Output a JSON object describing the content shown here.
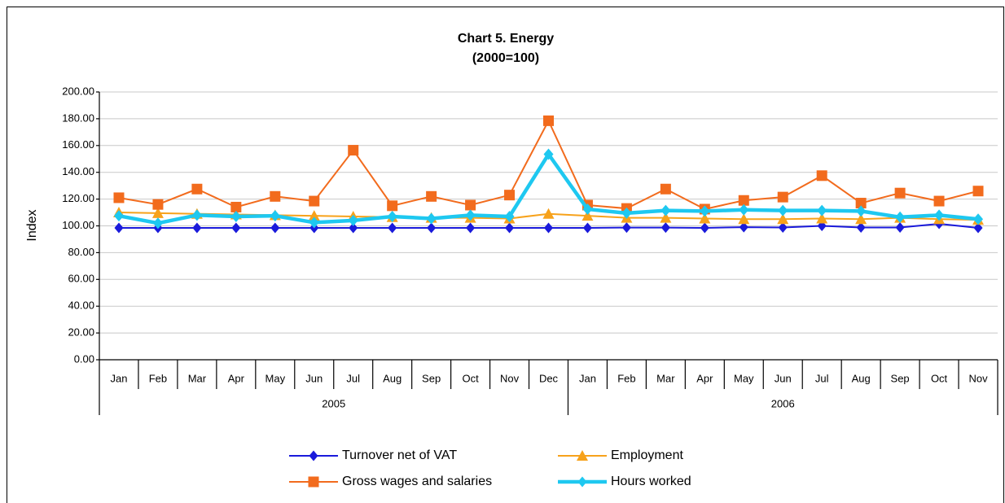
{
  "chart_data": {
    "type": "line",
    "title": "Chart 5.  Energy",
    "subtitle": "(2000=100)",
    "y_label": "Index",
    "groups": [
      {
        "name": "2005",
        "categories": [
          "Jan",
          "Feb",
          "Mar",
          "Apr",
          "May",
          "Jun",
          "Jul",
          "Aug",
          "Sep",
          "Oct",
          "Nov",
          "Dec"
        ]
      },
      {
        "name": "2006",
        "categories": [
          "Jan",
          "Feb",
          "Mar",
          "Apr",
          "May",
          "Jun",
          "Jul",
          "Aug",
          "Sep",
          "Oct",
          "Nov"
        ]
      }
    ],
    "ylim": [
      0,
      200
    ],
    "yticks": [
      {
        "value": 0,
        "label": "0.00"
      },
      {
        "value": 20,
        "label": "20.00"
      },
      {
        "value": 40,
        "label": "40.00"
      },
      {
        "value": 60,
        "label": "60.00"
      },
      {
        "value": 80,
        "label": "80.00"
      },
      {
        "value": 100,
        "label": "100.00"
      },
      {
        "value": 120,
        "label": "120.00"
      },
      {
        "value": 140,
        "label": "140.00"
      },
      {
        "value": 160,
        "label": "160.00"
      },
      {
        "value": 180,
        "label": "180.00"
      },
      {
        "value": 200,
        "label": "200.00"
      }
    ],
    "grid": true,
    "legend": "bottom",
    "series": [
      {
        "name": "Turnover net of VAT",
        "color": "#1a1adb",
        "marker": "diamond",
        "values": [
          98.5,
          98.5,
          98.5,
          98.5,
          98.5,
          98.5,
          98.5,
          98.5,
          98.5,
          98.5,
          98.5,
          98.5,
          98.5,
          98.7,
          98.7,
          98.5,
          99,
          98.8,
          100,
          98.8,
          98.8,
          101.5,
          98.5
        ]
      },
      {
        "name": "Employment",
        "color": "#f7a21b",
        "marker": "triangle",
        "values": [
          110,
          109.5,
          109,
          108.5,
          108,
          107.5,
          107,
          106.5,
          106,
          106,
          105.5,
          109,
          107.5,
          106,
          106,
          105.5,
          105,
          105,
          105.5,
          105,
          106,
          105,
          104.5
        ]
      },
      {
        "name": "Gross wages and salaries",
        "color": "#f26b1d",
        "marker": "square",
        "values": [
          121,
          116,
          127.5,
          114,
          122,
          118.5,
          156.5,
          115,
          122,
          115.5,
          123,
          178.5,
          115.5,
          113,
          127.5,
          112.5,
          119,
          121.5,
          137.5,
          117,
          124.5,
          118.5,
          126
        ]
      },
      {
        "name": "Hours worked",
        "color": "#1ec8f0",
        "marker": "diamond",
        "values": [
          107.5,
          102,
          108,
          107,
          107.5,
          102.5,
          104,
          107,
          105.5,
          108,
          107,
          153.5,
          112.5,
          109.5,
          111.5,
          111,
          112,
          111.5,
          111.5,
          111,
          106.5,
          108,
          105
        ]
      }
    ]
  }
}
